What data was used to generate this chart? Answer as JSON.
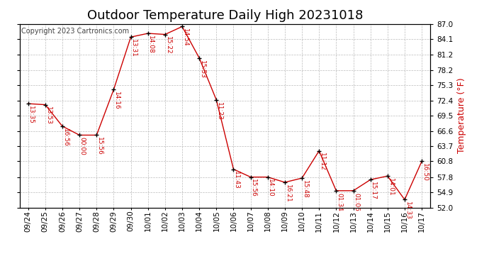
{
  "title": "Outdoor Temperature Daily High 20231018",
  "copyright": "Copyright 2023 Cartronics.com",
  "ylabel": "Temperature (°F)",
  "ylabel_color": "#cc0000",
  "x_labels": [
    "09/24",
    "09/25",
    "09/26",
    "09/27",
    "09/28",
    "09/29",
    "09/30",
    "10/01",
    "10/02",
    "10/03",
    "10/04",
    "10/05",
    "10/06",
    "10/07",
    "10/08",
    "10/09",
    "10/10",
    "10/11",
    "10/12",
    "10/13",
    "10/14",
    "10/15",
    "10/16",
    "10/17"
  ],
  "y_values": [
    71.8,
    71.6,
    67.5,
    65.8,
    65.8,
    74.5,
    84.5,
    85.2,
    85.0,
    86.5,
    80.5,
    72.5,
    59.3,
    57.8,
    57.8,
    56.8,
    57.6,
    62.8,
    55.2,
    55.2,
    57.3,
    58.0,
    53.5,
    60.8
  ],
  "point_labels": [
    "13:35",
    "13:53",
    "16:56",
    "00:00",
    "15:56",
    "14:16",
    "13:31",
    "14:08",
    "15:22",
    "14:54",
    "15:53",
    "11:23",
    "11:43",
    "15:56",
    "14:10",
    "16:21",
    "15:48",
    "11:12",
    "01:34",
    "01:06",
    "15:17",
    "14:01",
    "14:33",
    "16:50"
  ],
  "line_color": "#cc0000",
  "marker_color": "#000000",
  "bg_color": "#ffffff",
  "grid_color": "#bbbbbb",
  "ylim": [
    52.0,
    87.0
  ],
  "yticks": [
    52.0,
    54.9,
    57.8,
    60.8,
    63.7,
    66.6,
    69.5,
    72.4,
    75.3,
    78.2,
    81.2,
    84.1,
    87.0
  ],
  "title_fontsize": 13,
  "label_fontsize": 6.5,
  "copyright_fontsize": 7,
  "tick_fontsize": 7.5
}
